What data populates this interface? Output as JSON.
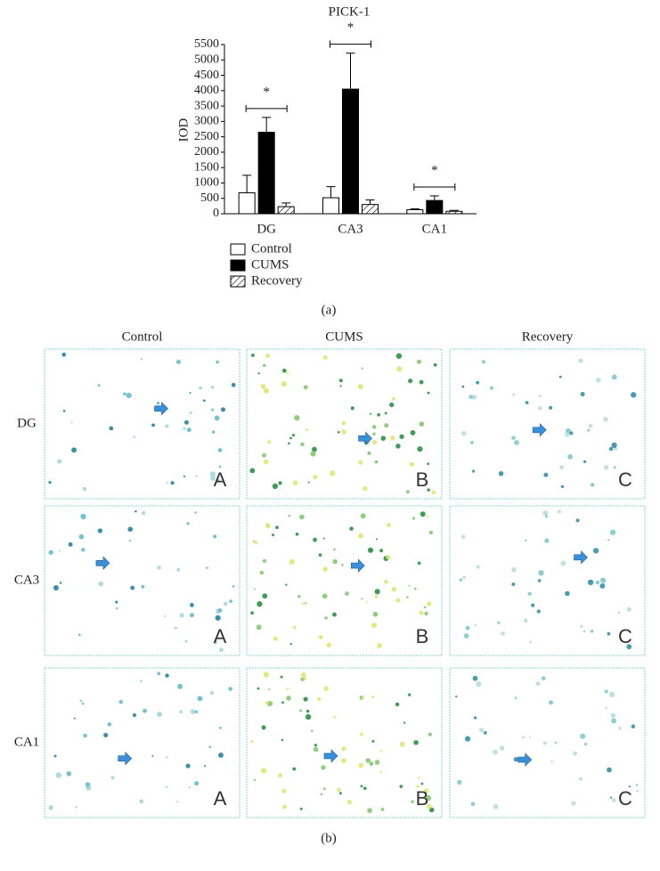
{
  "chart_data": {
    "type": "bar",
    "title": "PICK-1",
    "y_label": "IOD",
    "caption": "(a)",
    "categories": [
      "DG",
      "CA3",
      "CA1"
    ],
    "series": [
      {
        "name": "Control",
        "color": "#ffffff",
        "values": [
          680,
          520,
          130
        ],
        "errors": [
          570,
          360,
          30
        ]
      },
      {
        "name": "CUMS",
        "color": "#000000",
        "values": [
          2650,
          4050,
          430
        ],
        "errors": [
          480,
          1170,
          150
        ]
      },
      {
        "name": "Recovery",
        "color": "#ffffff",
        "hatch": true,
        "values": [
          230,
          300,
          80
        ],
        "errors": [
          120,
          150,
          30
        ]
      }
    ],
    "significance": [
      "*",
      "*",
      "*"
    ],
    "ylim": [
      0,
      5500
    ],
    "yticks": [
      0,
      500,
      1000,
      1500,
      2000,
      2500,
      3000,
      3500,
      4000,
      4500,
      5000,
      5500
    ]
  },
  "micrographs": {
    "caption": "(b)",
    "columns": [
      "Control",
      "CUMS",
      "Recovery"
    ],
    "rows": [
      "DG",
      "CA3",
      "CA1"
    ],
    "panel_letters": [
      "A",
      "B",
      "C"
    ]
  }
}
